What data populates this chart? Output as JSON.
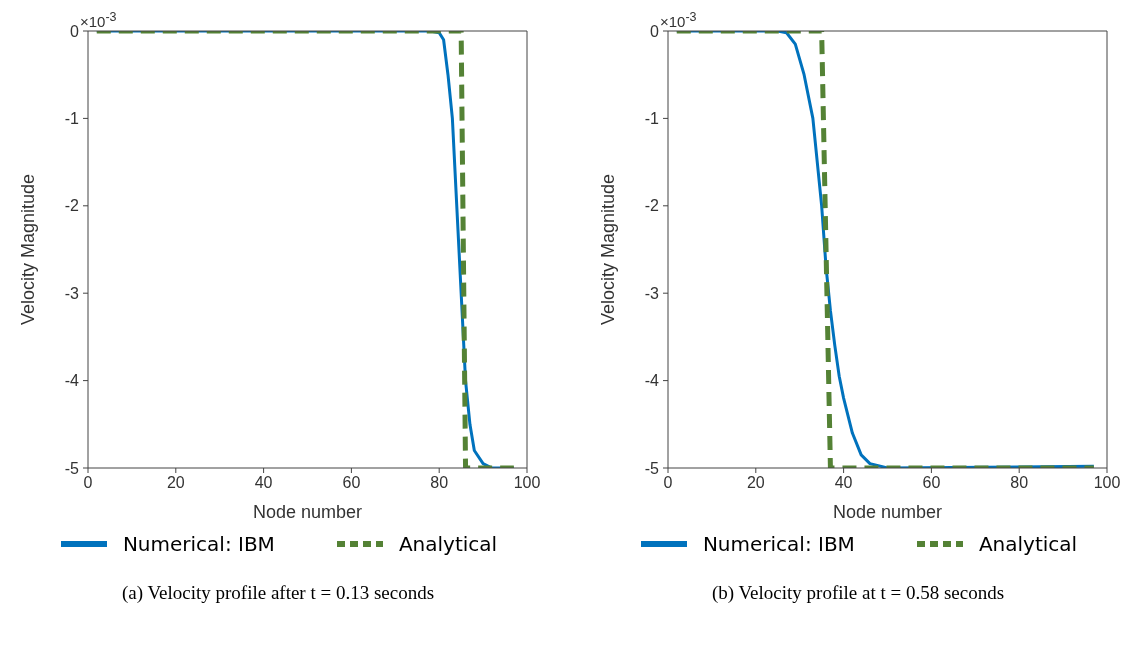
{
  "chart_data": [
    {
      "type": "line",
      "xlabel": "Node number",
      "ylabel": "Velocity Magnitude",
      "xlim": [
        0,
        100
      ],
      "xticks": [
        0,
        20,
        40,
        60,
        80,
        100
      ],
      "ylim": [
        -5,
        0
      ],
      "yticks": [
        -5,
        -4,
        -3,
        -2,
        -1,
        0
      ],
      "grid": false,
      "legend": "bottom",
      "marker": "none",
      "annotations": [
        "×10$^{-3}$",
        "(a) Velocity profile after t = 0.13 seconds"
      ],
      "series": [
        {
          "name": "Numerical: IBM",
          "color": "#0072bd",
          "line_style": "solid",
          "x": [
            2,
            78,
            80,
            81,
            82,
            83,
            84,
            85,
            86,
            87,
            88,
            90,
            92,
            97
          ],
          "values": [
            0,
            0,
            -0.02,
            -0.1,
            -0.5,
            -1.0,
            -2,
            -3,
            -4,
            -4.5,
            -4.8,
            -4.95,
            -5,
            -5
          ]
        },
        {
          "name": "Analytical",
          "color": "#548235",
          "line_style": "dashed",
          "x": [
            2,
            85,
            86,
            97
          ],
          "values": [
            0,
            0,
            -5,
            -5
          ]
        }
      ]
    },
    {
      "type": "line",
      "xlabel": "Node number",
      "ylabel": "Velocity Magnitude",
      "xlim": [
        0,
        100
      ],
      "xticks": [
        0,
        20,
        40,
        60,
        80,
        100
      ],
      "ylim": [
        -5,
        0
      ],
      "yticks": [
        -5,
        -4,
        -3,
        -2,
        -1,
        0
      ],
      "grid": false,
      "legend": "bottom",
      "marker": "none",
      "annotations": [
        "×10$^{-3}$",
        "(b) Velocity profile at t = 0.58 seconds"
      ],
      "series": [
        {
          "name": "Numerical: IBM",
          "color": "#0072bd",
          "line_style": "solid",
          "x": [
            2,
            25,
            27,
            29,
            31,
            33,
            34,
            35,
            36,
            37,
            38,
            39,
            40,
            42,
            44,
            46,
            50,
            97
          ],
          "values": [
            0,
            0,
            -0.02,
            -0.15,
            -0.5,
            -1,
            -1.5,
            -2,
            -2.7,
            -3.2,
            -3.6,
            -3.95,
            -4.2,
            -4.6,
            -4.85,
            -4.95,
            -5,
            -4.98
          ]
        },
        {
          "name": "Analytical",
          "color": "#548235",
          "line_style": "dashed",
          "x": [
            2,
            35,
            37,
            97
          ],
          "values": [
            0,
            0,
            -5,
            -5
          ]
        }
      ]
    }
  ]
}
